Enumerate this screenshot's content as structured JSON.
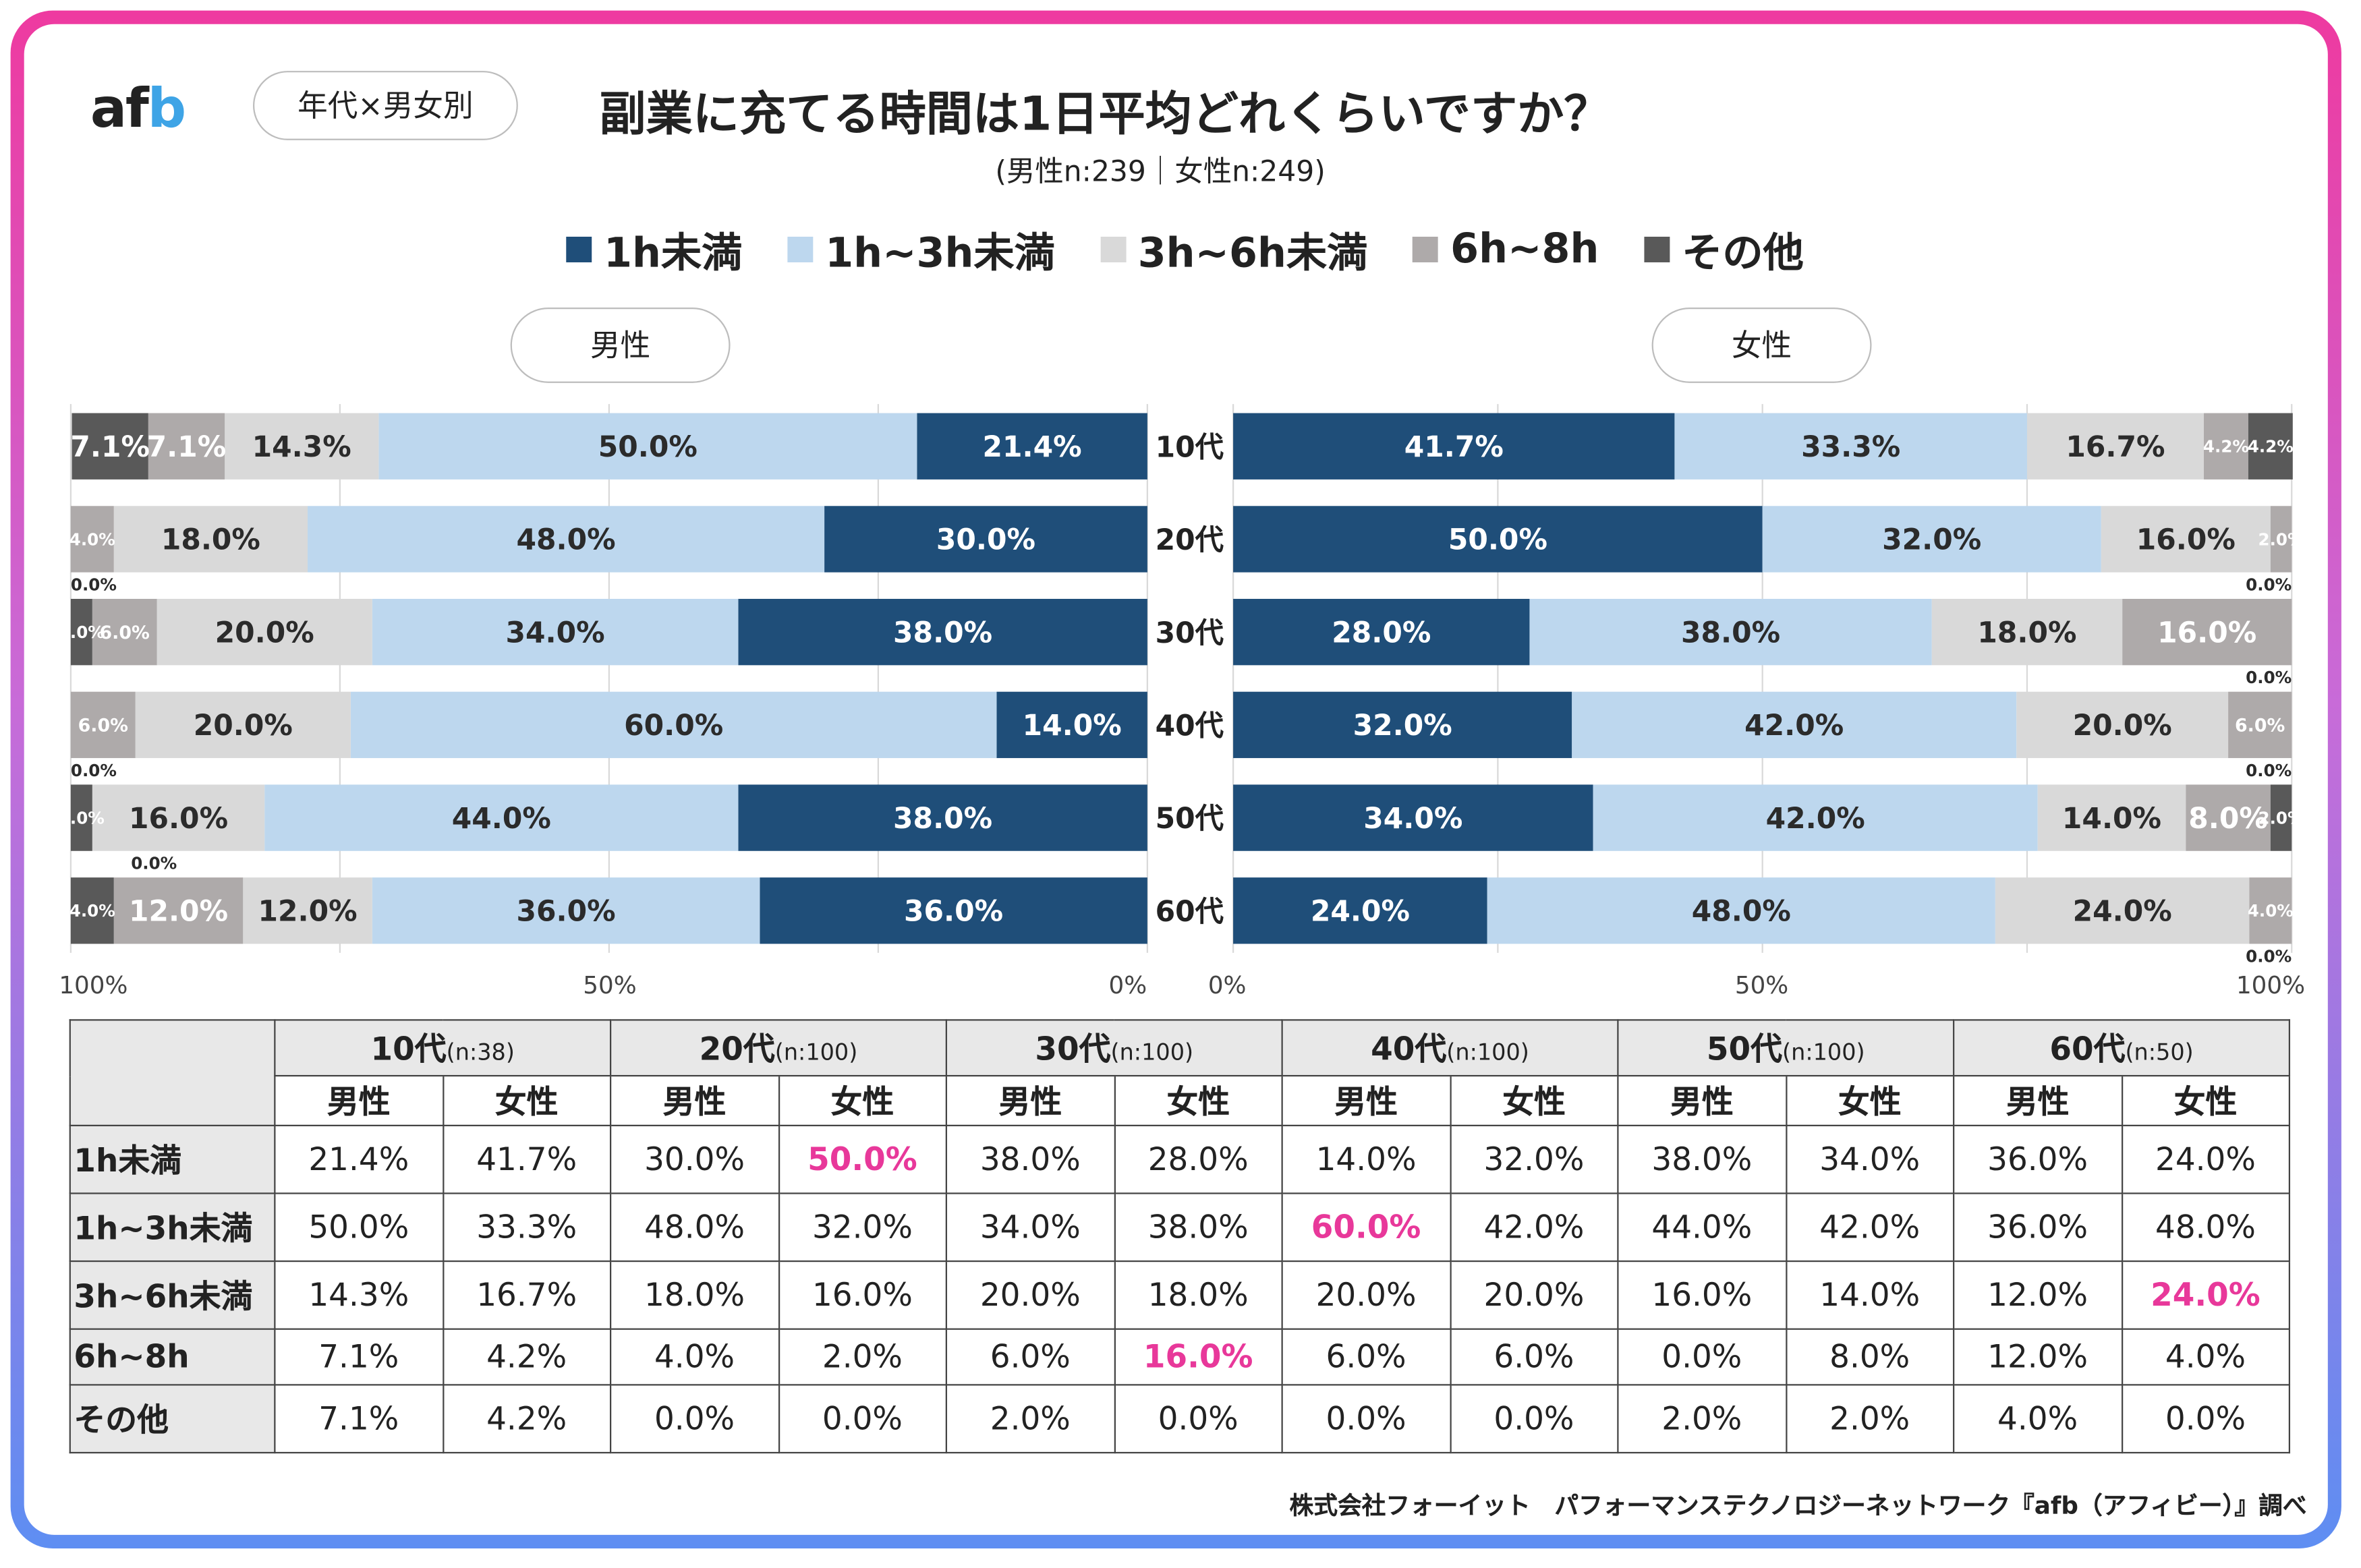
{
  "logo": {
    "text_a": "af",
    "text_b": "b"
  },
  "tag": "年代×男女別",
  "title": "副業に充てる時間は1日平均どれくらいですか？",
  "subtitle": "(男性n:239｜女性n:249)",
  "colors": {
    "1h未満": "#1f4e79",
    "1h~3h未満": "#bdd7ee",
    "3h~6h未満": "#d9d9d9",
    "6h~8h": "#aeaaaa",
    "その他": "#595959",
    "highlight": "#e8389a"
  },
  "chart_data": {
    "type": "bar",
    "orientation": "horizontal",
    "stacked": true,
    "categories": [
      "10代",
      "20代",
      "30代",
      "40代",
      "50代",
      "60代"
    ],
    "legend": [
      "1h未満",
      "1h~3h未満",
      "3h~6h未満",
      "6h~8h",
      "その他"
    ],
    "panels": [
      {
        "name": "男性",
        "direction": "right-to-left",
        "xlim": [
          0,
          100
        ],
        "ticks": [
          "100%",
          "50%",
          "0%"
        ],
        "series": [
          {
            "name": "1h未満",
            "values": [
              21.4,
              30.0,
              38.0,
              14.0,
              38.0,
              36.0
            ]
          },
          {
            "name": "1h~3h未満",
            "values": [
              50.0,
              48.0,
              34.0,
              60.0,
              44.0,
              36.0
            ]
          },
          {
            "name": "3h~6h未満",
            "values": [
              14.3,
              18.0,
              20.0,
              20.0,
              16.0,
              12.0
            ]
          },
          {
            "name": "6h~8h",
            "values": [
              7.1,
              4.0,
              6.0,
              6.0,
              0.0,
              12.0
            ]
          },
          {
            "name": "その他",
            "values": [
              7.1,
              0.0,
              2.0,
              0.0,
              2.0,
              4.0
            ]
          }
        ]
      },
      {
        "name": "女性",
        "direction": "left-to-right",
        "xlim": [
          0,
          100
        ],
        "ticks": [
          "0%",
          "50%",
          "100%"
        ],
        "series": [
          {
            "name": "1h未満",
            "values": [
              41.7,
              50.0,
              28.0,
              32.0,
              34.0,
              24.0
            ]
          },
          {
            "name": "1h~3h未満",
            "values": [
              33.3,
              32.0,
              38.0,
              42.0,
              42.0,
              48.0
            ]
          },
          {
            "name": "3h~6h未満",
            "values": [
              16.7,
              16.0,
              18.0,
              20.0,
              14.0,
              24.0
            ]
          },
          {
            "name": "6h~8h",
            "values": [
              4.2,
              2.0,
              16.0,
              6.0,
              8.0,
              4.0
            ]
          },
          {
            "name": "その他",
            "values": [
              4.2,
              0.0,
              0.0,
              0.0,
              2.0,
              0.0
            ]
          }
        ]
      }
    ]
  },
  "table": {
    "age_groups": [
      {
        "label": "10代",
        "n": "(n:38)"
      },
      {
        "label": "20代",
        "n": "(n:100)"
      },
      {
        "label": "30代",
        "n": "(n:100)"
      },
      {
        "label": "40代",
        "n": "(n:100)"
      },
      {
        "label": "50代",
        "n": "(n:100)"
      },
      {
        "label": "60代",
        "n": "(n:50)"
      }
    ],
    "genders": [
      "男性",
      "女性"
    ],
    "rows": [
      {
        "label": "1h未満",
        "values": [
          "21.4%",
          "41.7%",
          "30.0%",
          "50.0%",
          "38.0%",
          "28.0%",
          "14.0%",
          "32.0%",
          "38.0%",
          "34.0%",
          "36.0%",
          "24.0%"
        ],
        "highlight": [
          3
        ]
      },
      {
        "label": "1h~3h未満",
        "values": [
          "50.0%",
          "33.3%",
          "48.0%",
          "32.0%",
          "34.0%",
          "38.0%",
          "60.0%",
          "42.0%",
          "44.0%",
          "42.0%",
          "36.0%",
          "48.0%"
        ],
        "highlight": [
          6
        ]
      },
      {
        "label": "3h~6h未満",
        "values": [
          "14.3%",
          "16.7%",
          "18.0%",
          "16.0%",
          "20.0%",
          "18.0%",
          "20.0%",
          "20.0%",
          "16.0%",
          "14.0%",
          "12.0%",
          "24.0%"
        ],
        "highlight": [
          11
        ]
      },
      {
        "label": "6h~8h",
        "values": [
          "7.1%",
          "4.2%",
          "4.0%",
          "2.0%",
          "6.0%",
          "16.0%",
          "6.0%",
          "6.0%",
          "0.0%",
          "8.0%",
          "12.0%",
          "4.0%"
        ],
        "highlight": [
          5
        ]
      },
      {
        "label": "その他",
        "values": [
          "7.1%",
          "4.2%",
          "0.0%",
          "0.0%",
          "2.0%",
          "0.0%",
          "0.0%",
          "0.0%",
          "2.0%",
          "2.0%",
          "4.0%",
          "0.0%"
        ],
        "highlight": []
      }
    ]
  },
  "footer": "株式会社フォーイット　パフォーマンステクノロジーネットワーク『afb（アフィビー）』調べ"
}
